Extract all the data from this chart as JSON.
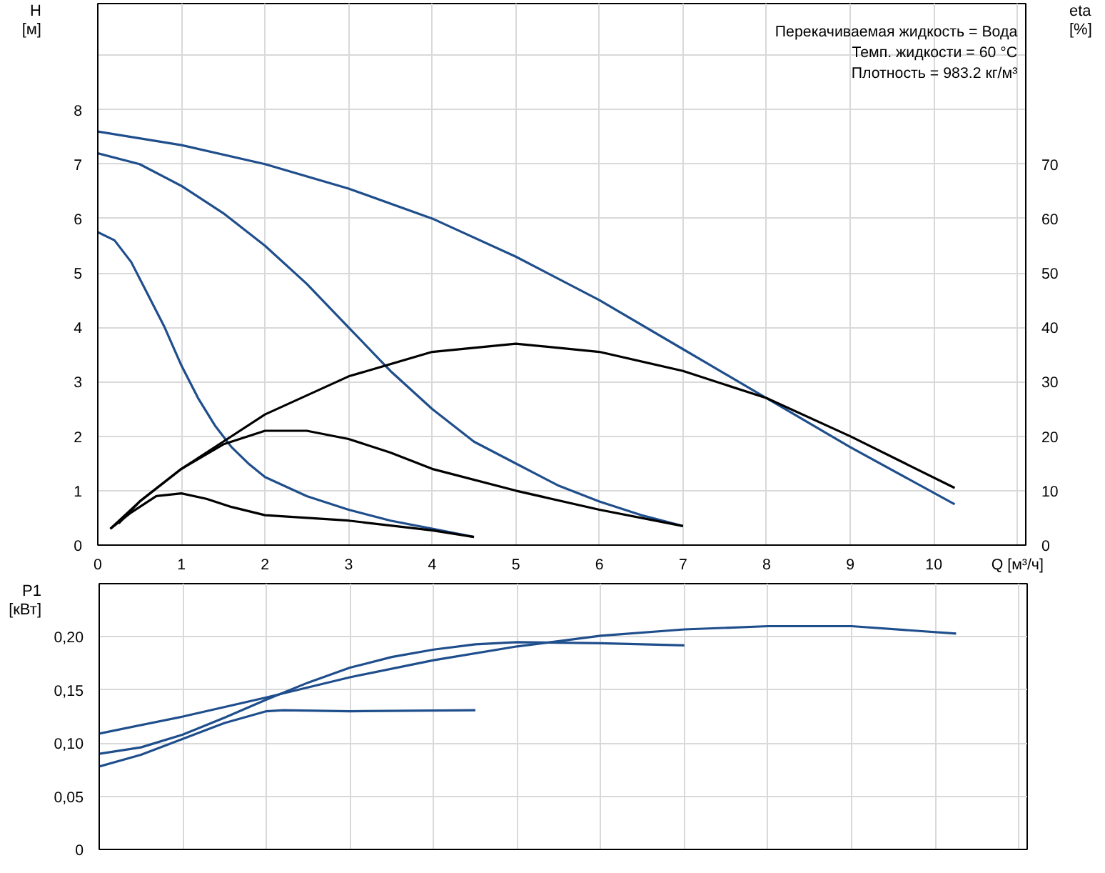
{
  "chart_data": [
    {
      "type": "line",
      "xlabel": "Q [м³/ч]",
      "ylabel": "H\n[м]",
      "y2label": "eta\n[%]",
      "annotations": [
        "Перекачиваемая жидкость = Вода",
        "Темп. жидкости = 60 °C",
        "Плотность = 983.2 кг/м³"
      ],
      "xlim": [
        0,
        11.1
      ],
      "xticks": [
        0,
        1,
        2,
        3,
        4,
        5,
        6,
        7,
        8,
        9,
        10,
        {
          "value": 11,
          "label": null
        }
      ],
      "ylim": [
        0,
        9.95
      ],
      "yticks": [
        0,
        1,
        2,
        3,
        4,
        5,
        6,
        7,
        8,
        {
          "value": 9,
          "label": null
        }
      ],
      "y2lim": [
        0,
        99.5
      ],
      "y2ticks": [
        0,
        10,
        20,
        30,
        40,
        50,
        60,
        70
      ],
      "grid": true,
      "series": [
        {
          "color": "#1f4e8c",
          "x": [
            0,
            1,
            2,
            3,
            4,
            5,
            6,
            7,
            8,
            9,
            10.25
          ],
          "values": [
            7.6,
            7.35,
            7.0,
            6.55,
            6.0,
            5.3,
            4.5,
            3.6,
            2.7,
            1.8,
            0.75
          ]
        },
        {
          "color": "#1f4e8c",
          "x": [
            0,
            0.5,
            1,
            1.5,
            2,
            2.5,
            3,
            3.5,
            4,
            4.5,
            5,
            5.5,
            6,
            6.5,
            7
          ],
          "values": [
            7.2,
            7.0,
            6.6,
            6.1,
            5.5,
            4.8,
            4.0,
            3.2,
            2.5,
            1.9,
            1.5,
            1.1,
            0.8,
            0.55,
            0.35
          ]
        },
        {
          "color": "#1f4e8c",
          "x": [
            0,
            0.2,
            0.4,
            0.6,
            0.8,
            1,
            1.2,
            1.4,
            1.6,
            1.8,
            2,
            2.5,
            3,
            3.5,
            4,
            4.5
          ],
          "values": [
            5.75,
            5.6,
            5.2,
            4.6,
            4.0,
            3.3,
            2.7,
            2.2,
            1.8,
            1.5,
            1.25,
            0.9,
            0.65,
            0.45,
            0.3,
            0.15
          ]
        },
        {
          "color": "#000000",
          "axis": "y2",
          "x": [
            0.15,
            0.5,
            1,
            1.5,
            2,
            3,
            4,
            5,
            6,
            7,
            8,
            9,
            10.25
          ],
          "values": [
            3,
            8,
            14,
            19,
            24,
            31,
            35.5,
            37,
            35.5,
            32,
            27,
            20,
            10.5
          ]
        },
        {
          "color": "#000000",
          "axis": "y2",
          "x": [
            0.25,
            0.5,
            1,
            1.5,
            2,
            2.5,
            3,
            3.5,
            4,
            5,
            6,
            7
          ],
          "values": [
            4,
            8,
            14,
            18.5,
            21,
            21,
            19.5,
            17,
            14,
            10,
            6.5,
            3.5
          ]
        },
        {
          "color": "#000000",
          "axis": "y2",
          "x": [
            0.15,
            0.4,
            0.7,
            1,
            1.3,
            1.6,
            2,
            3,
            4,
            4.5
          ],
          "values": [
            3,
            6,
            9,
            9.5,
            8.5,
            7,
            5.5,
            4.5,
            2.7,
            1.5
          ]
        }
      ]
    },
    {
      "type": "line",
      "ylabel": "P1\n[кВт]",
      "tick_labels": "y",
      "xlim": [
        0,
        11.1
      ],
      "xticks": [
        0,
        1,
        2,
        3,
        4,
        5,
        6,
        7,
        8,
        9,
        10,
        11
      ],
      "ylim": [
        0,
        0.25
      ],
      "yticks": [
        {
          "value": 0,
          "label": "0"
        },
        {
          "value": 0.05,
          "label": "0,05"
        },
        {
          "value": 0.1,
          "label": "0,10"
        },
        {
          "value": 0.15,
          "label": "0,15"
        },
        {
          "value": 0.2,
          "label": "0,20"
        }
      ],
      "grid": true,
      "series": [
        {
          "color": "#1f4e8c",
          "x": [
            0,
            1,
            2,
            3,
            4,
            5,
            6,
            7,
            8,
            9,
            10.25
          ],
          "values": [
            0.109,
            0.125,
            0.143,
            0.162,
            0.178,
            0.191,
            0.201,
            0.207,
            0.21,
            0.21,
            0.203
          ]
        },
        {
          "color": "#1f4e8c",
          "x": [
            0,
            0.5,
            1,
            1.5,
            2,
            2.5,
            3,
            3.5,
            4,
            4.5,
            5,
            6,
            7
          ],
          "values": [
            0.09,
            0.096,
            0.108,
            0.124,
            0.141,
            0.157,
            0.171,
            0.181,
            0.188,
            0.193,
            0.195,
            0.194,
            0.192
          ]
        },
        {
          "color": "#1f4e8c",
          "x": [
            0,
            0.5,
            1,
            1.5,
            2,
            2.2,
            3,
            4.5
          ],
          "values": [
            0.078,
            0.089,
            0.104,
            0.119,
            0.13,
            0.131,
            0.13,
            0.131
          ]
        }
      ]
    }
  ]
}
